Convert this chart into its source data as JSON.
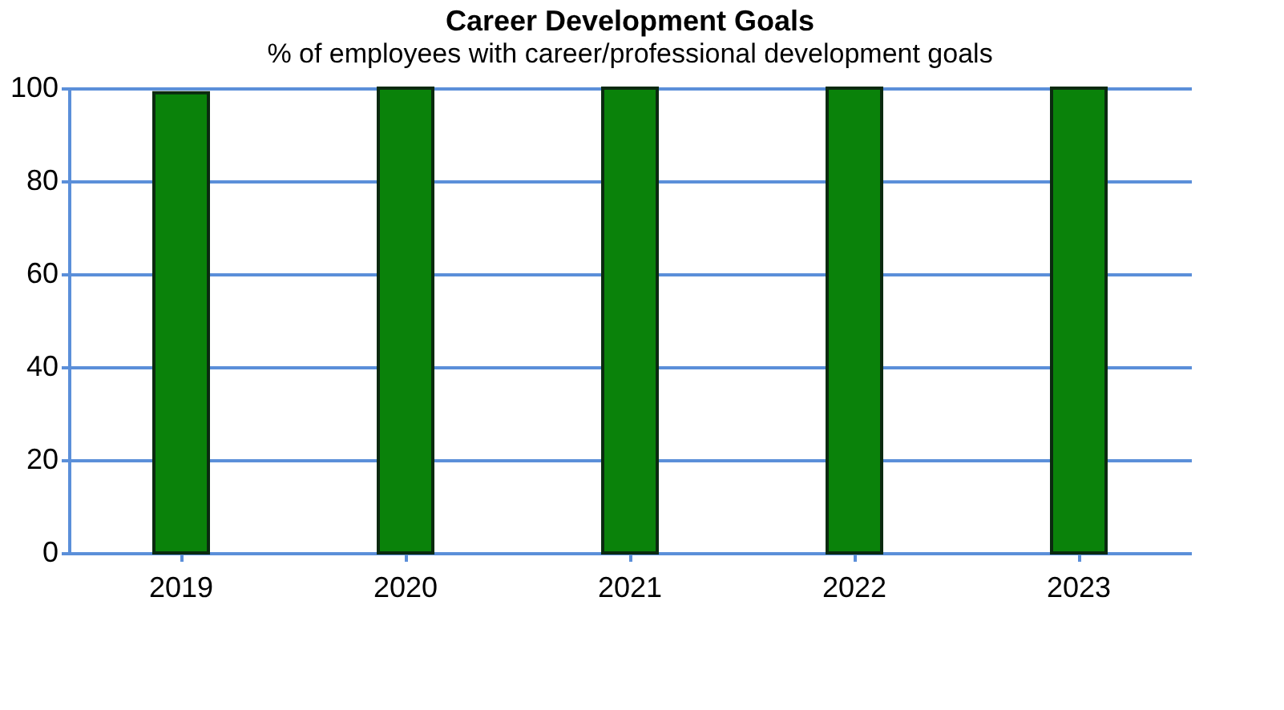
{
  "chart_data": {
    "type": "bar",
    "title": "Career Development Goals",
    "subtitle": "% of employees with career/professional development goals",
    "categories": [
      "2019",
      "2020",
      "2021",
      "2022",
      "2023"
    ],
    "values": [
      99,
      100,
      100,
      100,
      100
    ],
    "color": "#0a820a",
    "ylim": [
      0,
      100
    ],
    "yticks": [
      0,
      20,
      40,
      60,
      80,
      100
    ],
    "grid": "y"
  }
}
